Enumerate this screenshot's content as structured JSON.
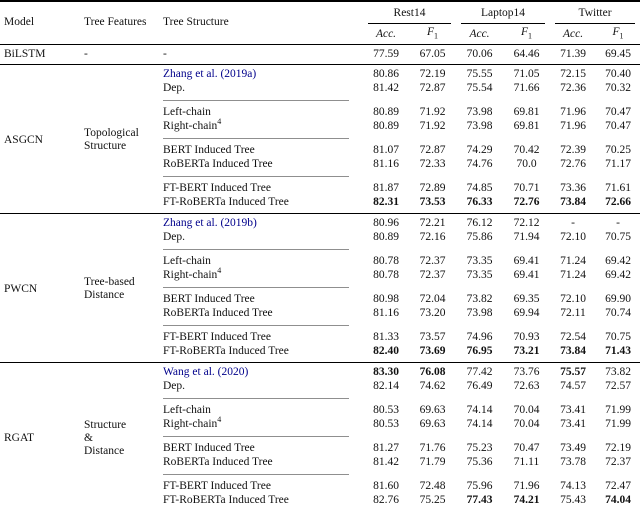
{
  "link_color": "#00008b",
  "rule_gray": "#8f8f8f",
  "header": {
    "model": "Model",
    "tree_features": "Tree Features",
    "tree_structure": "Tree Structure",
    "datasets": [
      "Rest14",
      "Laptop14",
      "Twitter"
    ],
    "metrics": [
      {
        "text": "Acc."
      },
      {
        "text": "F",
        "sub": "1"
      }
    ]
  },
  "baseline": {
    "model": "BiLSTM",
    "features": "-",
    "structure": "-",
    "values": [
      "77.59",
      "67.05",
      "70.06",
      "64.46",
      "71.39",
      "69.45"
    ]
  },
  "sections": [
    {
      "model": "ASGCN",
      "features": [
        "Topological",
        "Structure"
      ],
      "subgroups": [
        {
          "rows": [
            {
              "structure": "Zhang et al. (2019a)",
              "link": true,
              "values": [
                "80.86",
                "72.19",
                "75.55",
                "71.05",
                "72.15",
                "70.40"
              ],
              "bold": []
            },
            {
              "structure": "Dep.",
              "values": [
                "81.42",
                "72.87",
                "75.54",
                "71.66",
                "72.36",
                "70.32"
              ],
              "bold": []
            }
          ]
        },
        {
          "rows": [
            {
              "structure": "Left-chain",
              "values": [
                "80.89",
                "71.92",
                "73.98",
                "69.81",
                "71.96",
                "70.47"
              ],
              "bold": []
            },
            {
              "structure": "Right-chain",
              "sup": "4",
              "values": [
                "80.89",
                "71.92",
                "73.98",
                "69.81",
                "71.96",
                "70.47"
              ],
              "bold": []
            }
          ]
        },
        {
          "rows": [
            {
              "structure": "BERT Induced Tree",
              "values": [
                "81.07",
                "72.87",
                "74.29",
                "70.42",
                "72.39",
                "70.25"
              ],
              "bold": []
            },
            {
              "structure": "RoBERTa Induced Tree",
              "values": [
                "81.16",
                "72.33",
                "74.76",
                "70.0",
                "72.76",
                "71.17"
              ],
              "bold": []
            }
          ]
        },
        {
          "rows": [
            {
              "structure": "FT-BERT Induced Tree",
              "values": [
                "81.87",
                "72.89",
                "74.85",
                "70.71",
                "73.36",
                "71.61"
              ],
              "bold": []
            },
            {
              "structure": "FT-RoBERTa Induced Tree",
              "values": [
                "82.31",
                "73.53",
                "76.33",
                "72.76",
                "73.84",
                "72.66"
              ],
              "bold": [
                0,
                1,
                2,
                3,
                4,
                5
              ]
            }
          ]
        }
      ]
    },
    {
      "model": "PWCN",
      "features": [
        "Tree-based",
        "Distance"
      ],
      "subgroups": [
        {
          "rows": [
            {
              "structure": "Zhang et al. (2019b)",
              "link": true,
              "values": [
                "80.96",
                "72.21",
                "76.12",
                "72.12",
                "-",
                "-"
              ],
              "bold": []
            },
            {
              "structure": "Dep.",
              "values": [
                "80.89",
                "72.16",
                "75.86",
                "71.94",
                "72.10",
                "70.75"
              ],
              "bold": []
            }
          ]
        },
        {
          "rows": [
            {
              "structure": "Left-chain",
              "values": [
                "80.78",
                "72.37",
                "73.35",
                "69.41",
                "71.24",
                "69.42"
              ],
              "bold": []
            },
            {
              "structure": "Right-chain",
              "sup": "4",
              "values": [
                "80.78",
                "72.37",
                "73.35",
                "69.41",
                "71.24",
                "69.42"
              ],
              "bold": []
            }
          ]
        },
        {
          "rows": [
            {
              "structure": "BERT Induced Tree",
              "values": [
                "80.98",
                "72.04",
                "73.82",
                "69.35",
                "72.10",
                "69.90"
              ],
              "bold": []
            },
            {
              "structure": "RoBERTa Induced Tree",
              "values": [
                "81.16",
                "73.20",
                "73.98",
                "69.94",
                "72.11",
                "70.74"
              ],
              "bold": []
            }
          ]
        },
        {
          "rows": [
            {
              "structure": "FT-BERT Induced Tree",
              "values": [
                "81.33",
                "73.57",
                "74.96",
                "70.93",
                "72.54",
                "70.75"
              ],
              "bold": []
            },
            {
              "structure": "FT-RoBERTa Induced Tree",
              "values": [
                "82.40",
                "73.69",
                "76.95",
                "73.21",
                "73.84",
                "71.43"
              ],
              "bold": [
                0,
                1,
                2,
                3,
                4,
                5
              ]
            }
          ]
        }
      ]
    },
    {
      "model": "RGAT",
      "features": [
        "Structure",
        "&",
        "Distance"
      ],
      "subgroups": [
        {
          "rows": [
            {
              "structure": "Wang et al. (2020)",
              "link": true,
              "values": [
                "83.30",
                "76.08",
                "77.42",
                "73.76",
                "75.57",
                "73.82"
              ],
              "bold": [
                0,
                1,
                4
              ]
            },
            {
              "structure": "Dep.",
              "values": [
                "82.14",
                "74.62",
                "76.49",
                "72.63",
                "74.57",
                "72.57"
              ],
              "bold": []
            }
          ]
        },
        {
          "rows": [
            {
              "structure": "Left-chain",
              "values": [
                "80.53",
                "69.63",
                "74.14",
                "70.04",
                "73.41",
                "71.99"
              ],
              "bold": []
            },
            {
              "structure": "Right-chain",
              "sup": "4",
              "values": [
                "80.53",
                "69.63",
                "74.14",
                "70.04",
                "73.41",
                "71.99"
              ],
              "bold": []
            }
          ]
        },
        {
          "rows": [
            {
              "structure": "BERT Induced Tree",
              "values": [
                "81.27",
                "71.76",
                "75.23",
                "70.47",
                "73.49",
                "72.19"
              ],
              "bold": []
            },
            {
              "structure": "RoBERTa Induced Tree",
              "values": [
                "81.42",
                "71.79",
                "75.36",
                "71.11",
                "73.78",
                "72.37"
              ],
              "bold": []
            }
          ]
        },
        {
          "rows": [
            {
              "structure": "FT-BERT Induced Tree",
              "values": [
                "81.60",
                "72.48",
                "75.96",
                "71.96",
                "74.13",
                "72.47"
              ],
              "bold": []
            },
            {
              "structure": "FT-RoBERTa Induced Tree",
              "values": [
                "82.76",
                "75.25",
                "77.43",
                "74.21",
                "75.43",
                "74.04"
              ],
              "bold": [
                2,
                3,
                5
              ]
            }
          ]
        }
      ]
    }
  ]
}
